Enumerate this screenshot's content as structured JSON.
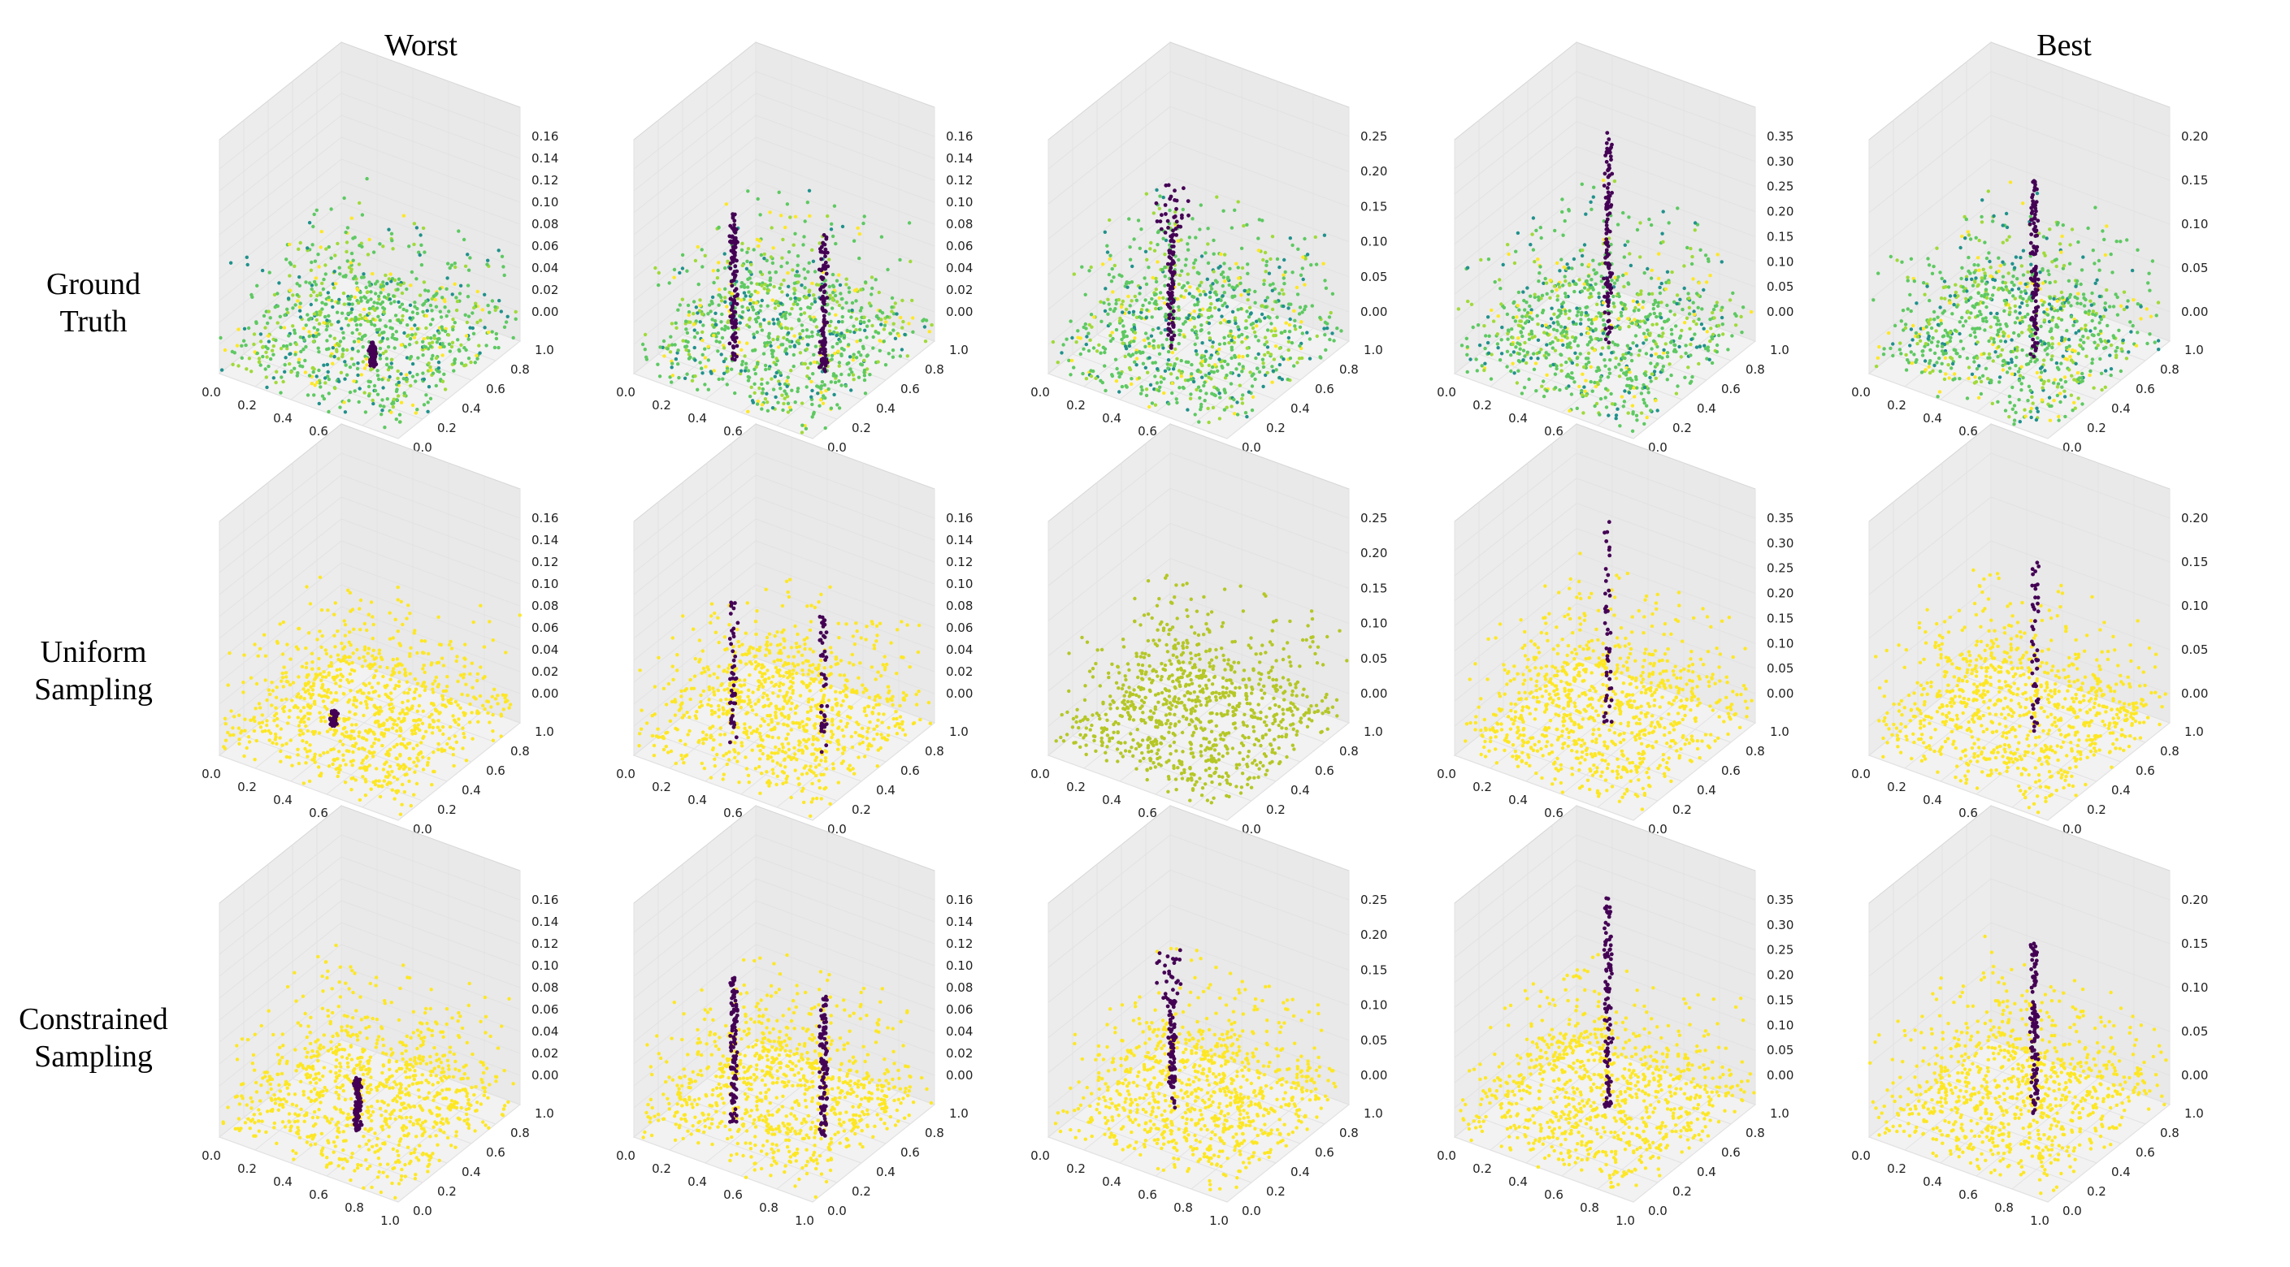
{
  "column_titles": {
    "worst": "Worst",
    "best": "Best"
  },
  "row_labels": [
    [
      "Ground",
      "Truth"
    ],
    [
      "Uniform",
      "Sampling"
    ],
    [
      "Constrained",
      "Sampling"
    ]
  ],
  "chart_data": {
    "type": "scatter",
    "subtype": "3d-point-cloud-grid",
    "rows": [
      "Ground Truth",
      "Uniform Sampling",
      "Constrained Sampling"
    ],
    "columns": 5,
    "x_ticks": [
      "0.0",
      "0.2",
      "0.4",
      "0.6",
      "0.8",
      "1.0"
    ],
    "y_ticks": [
      "0.0",
      "0.2",
      "0.4",
      "0.6",
      "0.8",
      "1.0"
    ],
    "columns_z_ticks": [
      [
        "0.00",
        "0.02",
        "0.04",
        "0.06",
        "0.08",
        "0.10",
        "0.12",
        "0.14",
        "0.16"
      ],
      [
        "0.00",
        "0.02",
        "0.04",
        "0.06",
        "0.08",
        "0.10",
        "0.12",
        "0.14",
        "0.16"
      ],
      [
        "0.00",
        "0.05",
        "0.10",
        "0.15",
        "0.20",
        "0.25"
      ],
      [
        "0.00",
        "0.05",
        "0.10",
        "0.15",
        "0.20",
        "0.25",
        "0.30",
        "0.35"
      ],
      [
        "0.00",
        "0.05",
        "0.10",
        "0.15",
        "0.20"
      ]
    ],
    "xlim": [
      0,
      1
    ],
    "ylim": [
      0,
      1
    ],
    "colormap": "viridis",
    "colors": {
      "dark_purple": "#440154",
      "teal": "#21918c",
      "green": "#5ec962",
      "light_green": "#a0da39",
      "yellow": "#fde725",
      "yellow_green": "#b5c726"
    },
    "grid": true
  }
}
